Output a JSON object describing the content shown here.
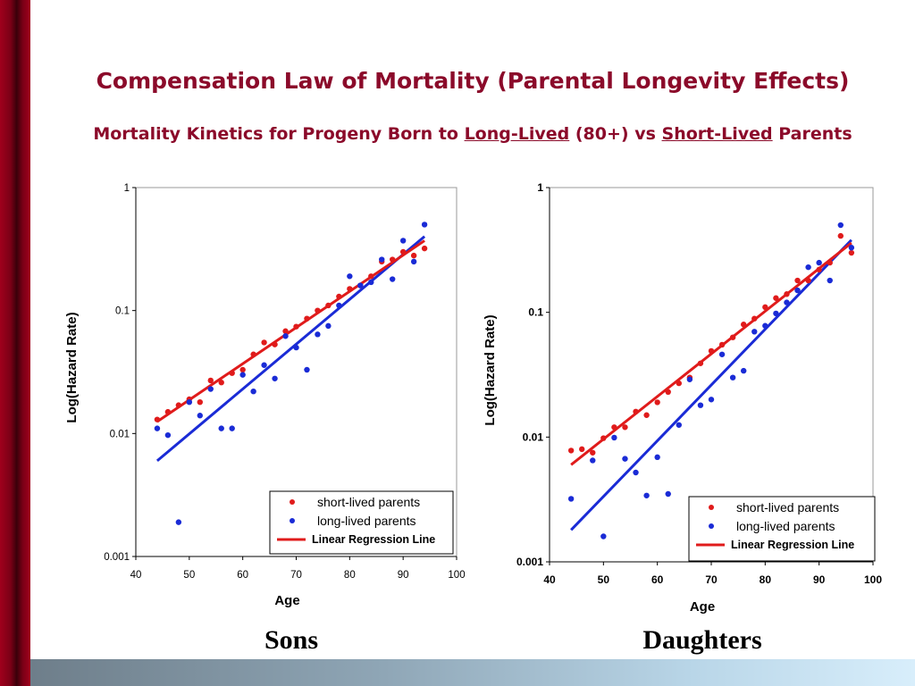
{
  "title": "Compensation Law of Mortality (Parental Longevity Effects)",
  "subtitle": {
    "prefix": "Mortality Kinetics for Progeny Born to ",
    "long_lived": "Long-Lived",
    "middle": " (80+) vs ",
    "short_lived": "Short-Lived",
    "suffix": " Parents"
  },
  "colors": {
    "title": "#8b0a2a",
    "short_lived_series": "#e01b1b",
    "long_lived_series": "#1a2bd6",
    "regression_line": "#e01b1b"
  },
  "chart_data": [
    {
      "type": "scatter",
      "caption": "Sons",
      "xlabel": "Age",
      "ylabel": "Log(Hazard Rate)",
      "xlim": [
        40,
        100
      ],
      "ylim": [
        0.001,
        1
      ],
      "yscale": "log",
      "x_ticks": [
        "40",
        "50",
        "60",
        "70",
        "80",
        "90",
        "100"
      ],
      "y_ticks": [
        "0.001",
        "0.01",
        "0.1",
        "1"
      ],
      "legend_position": "bottom-right",
      "legend": [
        "short-lived parents",
        "long-lived parents",
        "Linear Regression Line"
      ],
      "series": [
        {
          "name": "short-lived parents",
          "x": [
            44,
            46,
            48,
            50,
            52,
            54,
            56,
            58,
            60,
            62,
            64,
            66,
            68,
            70,
            72,
            74,
            76,
            78,
            80,
            82,
            84,
            86,
            88,
            90,
            92,
            94
          ],
          "y": [
            0.013,
            0.015,
            0.017,
            0.019,
            0.018,
            0.027,
            0.026,
            0.031,
            0.033,
            0.044,
            0.055,
            0.053,
            0.068,
            0.074,
            0.086,
            0.1,
            0.11,
            0.13,
            0.15,
            0.16,
            0.19,
            0.25,
            0.26,
            0.3,
            0.28,
            0.32
          ],
          "fit": {
            "x": [
              44,
              94
            ],
            "y": [
              0.0125,
              0.37
            ]
          }
        },
        {
          "name": "long-lived parents",
          "x": [
            44,
            46,
            48,
            50,
            52,
            54,
            56,
            58,
            60,
            62,
            64,
            66,
            68,
            70,
            72,
            74,
            76,
            78,
            80,
            82,
            84,
            86,
            88,
            90,
            92,
            94
          ],
          "y": [
            0.011,
            0.0097,
            0.0019,
            0.018,
            0.014,
            0.023,
            0.011,
            0.011,
            0.03,
            0.022,
            0.036,
            0.028,
            0.062,
            0.05,
            0.033,
            0.064,
            0.075,
            0.11,
            0.19,
            0.16,
            0.17,
            0.26,
            0.18,
            0.37,
            0.25,
            0.5
          ],
          "fit": {
            "x": [
              44,
              94
            ],
            "y": [
              0.006,
              0.4
            ]
          }
        }
      ]
    },
    {
      "type": "scatter",
      "caption": "Daughters",
      "xlabel": "Age",
      "ylabel": "Log(Hazard Rate)",
      "xlim": [
        40,
        100
      ],
      "ylim": [
        0.001,
        1
      ],
      "yscale": "log",
      "x_ticks": [
        "40",
        "50",
        "60",
        "70",
        "80",
        "90",
        "100"
      ],
      "y_ticks": [
        "0.001",
        "0.01",
        "0.1",
        "1"
      ],
      "legend_position": "bottom-right",
      "legend": [
        "short-lived parents",
        "long-lived parents",
        "Linear Regression Line"
      ],
      "series": [
        {
          "name": "short-lived parents",
          "x": [
            44,
            46,
            48,
            50,
            52,
            54,
            56,
            58,
            60,
            62,
            64,
            66,
            68,
            70,
            72,
            74,
            76,
            78,
            80,
            82,
            84,
            86,
            88,
            90,
            92,
            94,
            96
          ],
          "y": [
            0.0078,
            0.008,
            0.0075,
            0.0098,
            0.012,
            0.012,
            0.016,
            0.015,
            0.019,
            0.023,
            0.027,
            0.03,
            0.039,
            0.049,
            0.055,
            0.063,
            0.08,
            0.089,
            0.11,
            0.13,
            0.14,
            0.18,
            0.18,
            0.22,
            0.25,
            0.41,
            0.3
          ],
          "fit": {
            "x": [
              44,
              96
            ],
            "y": [
              0.006,
              0.36
            ]
          }
        },
        {
          "name": "long-lived parents",
          "x": [
            44,
            48,
            50,
            52,
            54,
            56,
            58,
            60,
            62,
            64,
            66,
            68,
            70,
            72,
            74,
            76,
            78,
            80,
            82,
            84,
            86,
            88,
            90,
            92,
            94,
            96
          ],
          "y": [
            0.0032,
            0.0065,
            0.0016,
            0.0099,
            0.0067,
            0.0052,
            0.0034,
            0.0069,
            0.0035,
            0.0125,
            0.029,
            0.018,
            0.02,
            0.046,
            0.03,
            0.034,
            0.07,
            0.078,
            0.098,
            0.12,
            0.15,
            0.23,
            0.25,
            0.18,
            0.5,
            0.33
          ],
          "fit": {
            "x": [
              44,
              96
            ],
            "y": [
              0.0018,
              0.38
            ]
          }
        }
      ]
    }
  ]
}
